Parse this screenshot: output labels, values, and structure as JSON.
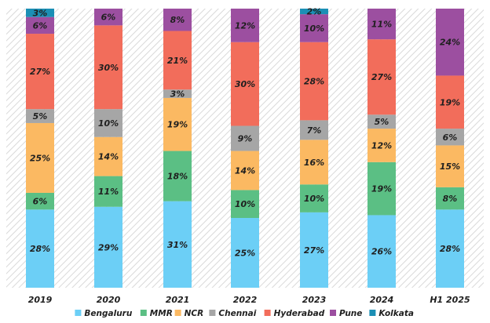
{
  "chart_data": {
    "type": "bar",
    "stacked": true,
    "orientation": "vertical",
    "categories": [
      "2019",
      "2020",
      "2021",
      "2022",
      "2023",
      "2024",
      "H1 2025"
    ],
    "series": [
      {
        "name": "Bengaluru",
        "color": "#6ccff6",
        "values": [
          28,
          29,
          31,
          25,
          27,
          26,
          28
        ]
      },
      {
        "name": "MMR",
        "color": "#5bbf84",
        "values": [
          6,
          11,
          18,
          10,
          10,
          19,
          8
        ]
      },
      {
        "name": "NCR",
        "color": "#fbb962",
        "values": [
          25,
          14,
          19,
          14,
          16,
          12,
          15
        ]
      },
      {
        "name": "Chennai",
        "color": "#a6a6a6",
        "values": [
          5,
          10,
          3,
          9,
          7,
          5,
          6
        ]
      },
      {
        "name": "Hyderabad",
        "color": "#f26d5b",
        "values": [
          27,
          30,
          21,
          30,
          28,
          27,
          19
        ]
      },
      {
        "name": "Pune",
        "color": "#9c4fa0",
        "values": [
          6,
          6,
          8,
          12,
          10,
          11,
          24
        ]
      },
      {
        "name": "Kolkata",
        "color": "#1b8fb5",
        "values": [
          3,
          0,
          0,
          0,
          2,
          0,
          0
        ]
      }
    ],
    "value_suffix": "%",
    "ylim": [
      0,
      100
    ],
    "legend_position": "bottom",
    "grid": false,
    "title": "",
    "xlabel": "",
    "ylabel": ""
  }
}
